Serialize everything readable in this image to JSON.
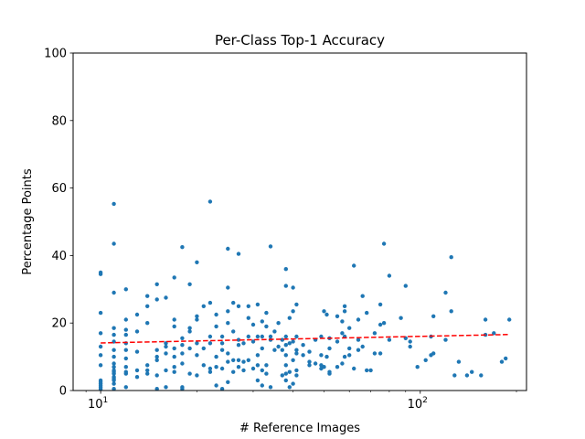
{
  "chart_data": {
    "type": "scatter",
    "title": "Per-Class Top-1 Accuracy",
    "xlabel": "# Reference Images",
    "ylabel": "Percentage Points",
    "xscale": "log",
    "xlim": [
      8.2,
      215
    ],
    "ylim": [
      0,
      100
    ],
    "grid": false,
    "x_major_ticks": [
      {
        "value": 10,
        "base": "10",
        "exp": "1"
      },
      {
        "value": 100,
        "base": "10",
        "exp": "2"
      }
    ],
    "x_minor_ticks": [
      9,
      20,
      30,
      40,
      50,
      60,
      70,
      80,
      90,
      200
    ],
    "y_ticks": [
      0,
      20,
      40,
      60,
      80,
      100
    ],
    "colors": {
      "points": "#1f77b4",
      "trend": "#ff0000"
    },
    "trend_line": {
      "style": "dashed",
      "x": [
        10,
        190
      ],
      "y": [
        14.1,
        16.6
      ]
    },
    "points": [
      [
        10,
        0.5
      ],
      [
        10,
        1
      ],
      [
        10,
        1.5
      ],
      [
        10,
        2
      ],
      [
        10,
        2.5
      ],
      [
        10,
        3
      ],
      [
        10,
        7.5
      ],
      [
        10,
        10.5
      ],
      [
        10,
        13
      ],
      [
        10,
        17
      ],
      [
        10,
        23
      ],
      [
        10,
        34.5
      ],
      [
        10,
        35
      ],
      [
        11,
        0.5
      ],
      [
        11,
        2
      ],
      [
        11,
        3
      ],
      [
        11,
        3.5
      ],
      [
        11,
        4
      ],
      [
        11,
        5
      ],
      [
        11,
        5.5
      ],
      [
        11,
        6
      ],
      [
        11,
        7
      ],
      [
        11,
        8
      ],
      [
        11,
        10
      ],
      [
        11,
        12
      ],
      [
        11,
        14.5
      ],
      [
        11,
        16.5
      ],
      [
        11,
        18.5
      ],
      [
        11,
        29
      ],
      [
        11,
        43.5
      ],
      [
        11,
        55.3
      ],
      [
        12,
        1
      ],
      [
        12,
        5
      ],
      [
        12,
        5.5
      ],
      [
        12,
        7
      ],
      [
        12,
        9.5
      ],
      [
        12,
        12
      ],
      [
        12,
        14
      ],
      [
        12,
        16.5
      ],
      [
        12,
        18
      ],
      [
        12,
        21
      ],
      [
        12,
        30
      ],
      [
        13,
        4
      ],
      [
        13,
        6
      ],
      [
        13,
        11.5
      ],
      [
        13,
        17.5
      ],
      [
        13,
        22.5
      ],
      [
        14,
        5
      ],
      [
        14,
        6
      ],
      [
        14,
        7.5
      ],
      [
        14,
        20
      ],
      [
        14,
        25
      ],
      [
        14,
        28
      ],
      [
        15,
        0.5
      ],
      [
        15,
        4.5
      ],
      [
        15,
        9
      ],
      [
        15,
        10
      ],
      [
        15,
        12
      ],
      [
        15,
        27
      ],
      [
        15,
        31.5
      ],
      [
        16,
        1
      ],
      [
        16,
        6
      ],
      [
        16,
        11
      ],
      [
        16,
        13
      ],
      [
        16,
        14
      ],
      [
        16,
        27.5
      ],
      [
        17,
        5.5
      ],
      [
        17,
        7
      ],
      [
        17,
        10
      ],
      [
        17,
        12.5
      ],
      [
        17,
        19
      ],
      [
        17,
        21
      ],
      [
        17,
        33.5
      ],
      [
        18,
        0.5
      ],
      [
        18,
        1
      ],
      [
        18,
        8
      ],
      [
        18,
        11
      ],
      [
        18,
        13.5
      ],
      [
        18,
        15.5
      ],
      [
        18,
        42.5
      ],
      [
        19,
        5
      ],
      [
        19,
        12.5
      ],
      [
        19,
        17.5
      ],
      [
        19,
        18.5
      ],
      [
        19,
        31.5
      ],
      [
        20,
        4.5
      ],
      [
        20,
        10.5
      ],
      [
        20,
        14
      ],
      [
        20,
        21
      ],
      [
        20,
        22
      ],
      [
        20,
        38
      ],
      [
        21,
        7.5
      ],
      [
        21,
        12.5
      ],
      [
        21,
        25
      ],
      [
        22,
        5.5
      ],
      [
        22,
        6.5
      ],
      [
        22,
        14
      ],
      [
        22,
        16
      ],
      [
        22,
        26
      ],
      [
        22,
        56
      ],
      [
        23,
        1.5
      ],
      [
        23,
        7
      ],
      [
        23,
        10
      ],
      [
        23,
        19
      ],
      [
        23,
        22.5
      ],
      [
        24,
        0.5
      ],
      [
        24,
        6.5
      ],
      [
        24,
        12
      ],
      [
        24,
        14
      ],
      [
        24,
        16
      ],
      [
        25,
        2.5
      ],
      [
        25,
        8.5
      ],
      [
        25,
        11
      ],
      [
        25,
        20
      ],
      [
        25,
        23.5
      ],
      [
        25,
        30.5
      ],
      [
        25,
        42
      ],
      [
        26,
        5.5
      ],
      [
        26,
        9
      ],
      [
        26,
        17.5
      ],
      [
        26,
        26
      ],
      [
        27,
        7
      ],
      [
        27,
        9
      ],
      [
        27,
        13.5
      ],
      [
        27,
        15
      ],
      [
        27,
        25
      ],
      [
        27,
        40.5
      ],
      [
        28,
        6
      ],
      [
        28,
        8.5
      ],
      [
        28,
        14
      ],
      [
        29,
        9
      ],
      [
        29,
        16
      ],
      [
        29,
        21.5
      ],
      [
        29,
        25
      ],
      [
        30,
        6.5
      ],
      [
        30,
        14.5
      ],
      [
        30,
        19.5
      ],
      [
        31,
        3
      ],
      [
        31,
        7.5
      ],
      [
        31,
        10.5
      ],
      [
        31,
        16
      ],
      [
        31,
        25.5
      ],
      [
        32,
        1.5
      ],
      [
        32,
        6
      ],
      [
        32,
        12.5
      ],
      [
        32,
        16
      ],
      [
        32,
        20.5
      ],
      [
        33,
        5
      ],
      [
        33,
        7.5
      ],
      [
        33,
        19
      ],
      [
        33,
        23
      ],
      [
        34,
        1
      ],
      [
        34,
        15
      ],
      [
        34,
        16
      ],
      [
        34,
        42.7
      ],
      [
        35,
        12
      ],
      [
        35,
        17.5
      ],
      [
        36,
        13
      ],
      [
        36,
        20
      ],
      [
        37,
        4.5
      ],
      [
        37,
        12
      ],
      [
        37,
        15
      ],
      [
        38,
        3
      ],
      [
        38,
        5
      ],
      [
        38,
        7.5
      ],
      [
        38,
        10.5
      ],
      [
        38,
        13.5
      ],
      [
        38,
        16
      ],
      [
        38,
        31
      ],
      [
        38,
        36
      ],
      [
        39,
        1
      ],
      [
        39,
        5.5
      ],
      [
        39,
        14
      ],
      [
        39,
        21.5
      ],
      [
        40,
        2
      ],
      [
        40,
        9
      ],
      [
        40,
        14.5
      ],
      [
        40,
        23.5
      ],
      [
        40,
        30.5
      ],
      [
        41,
        4.5
      ],
      [
        41,
        6
      ],
      [
        41,
        11
      ],
      [
        41,
        12
      ],
      [
        41,
        16
      ],
      [
        41,
        25.5
      ],
      [
        43,
        10.5
      ],
      [
        43,
        13.5
      ],
      [
        45,
        7.5
      ],
      [
        45,
        8.5
      ],
      [
        45,
        11.5
      ],
      [
        47,
        8
      ],
      [
        47,
        15
      ],
      [
        49,
        6.5
      ],
      [
        49,
        7.5
      ],
      [
        49,
        10.5
      ],
      [
        49,
        16
      ],
      [
        50,
        7
      ],
      [
        50,
        23.5
      ],
      [
        51,
        10
      ],
      [
        51,
        22.5
      ],
      [
        52,
        5
      ],
      [
        52,
        5.5
      ],
      [
        52,
        12.5
      ],
      [
        52,
        15.5
      ],
      [
        55,
        7
      ],
      [
        55,
        14.5
      ],
      [
        55,
        22
      ],
      [
        57,
        8
      ],
      [
        57,
        17
      ],
      [
        57,
        20.5
      ],
      [
        58,
        10
      ],
      [
        58,
        16
      ],
      [
        58,
        23.5
      ],
      [
        58,
        25
      ],
      [
        60,
        10.5
      ],
      [
        60,
        12.5
      ],
      [
        60,
        18.5
      ],
      [
        62,
        6.5
      ],
      [
        62,
        37
      ],
      [
        64,
        12
      ],
      [
        64,
        15
      ],
      [
        64,
        21
      ],
      [
        66,
        13
      ],
      [
        66,
        28
      ],
      [
        68,
        6
      ],
      [
        68,
        23
      ],
      [
        70,
        6
      ],
      [
        72,
        11
      ],
      [
        72,
        17
      ],
      [
        75,
        11
      ],
      [
        75,
        19.5
      ],
      [
        75,
        25.5
      ],
      [
        77,
        20
      ],
      [
        77,
        43.5
      ],
      [
        80,
        15
      ],
      [
        80,
        34
      ],
      [
        87,
        21.5
      ],
      [
        90,
        15.5
      ],
      [
        90,
        31
      ],
      [
        93,
        13
      ],
      [
        93,
        14.5
      ],
      [
        98,
        7
      ],
      [
        104,
        9
      ],
      [
        108,
        10.5
      ],
      [
        108,
        16
      ],
      [
        110,
        11
      ],
      [
        110,
        22
      ],
      [
        120,
        15
      ],
      [
        120,
        29
      ],
      [
        125,
        23.5
      ],
      [
        125,
        39.5
      ],
      [
        128,
        4.5
      ],
      [
        132,
        8.5
      ],
      [
        140,
        4.5
      ],
      [
        145,
        5.5
      ],
      [
        155,
        4.5
      ],
      [
        160,
        16.5
      ],
      [
        160,
        21
      ],
      [
        170,
        17
      ],
      [
        180,
        8.5
      ],
      [
        185,
        9.5
      ],
      [
        190,
        21
      ]
    ]
  }
}
